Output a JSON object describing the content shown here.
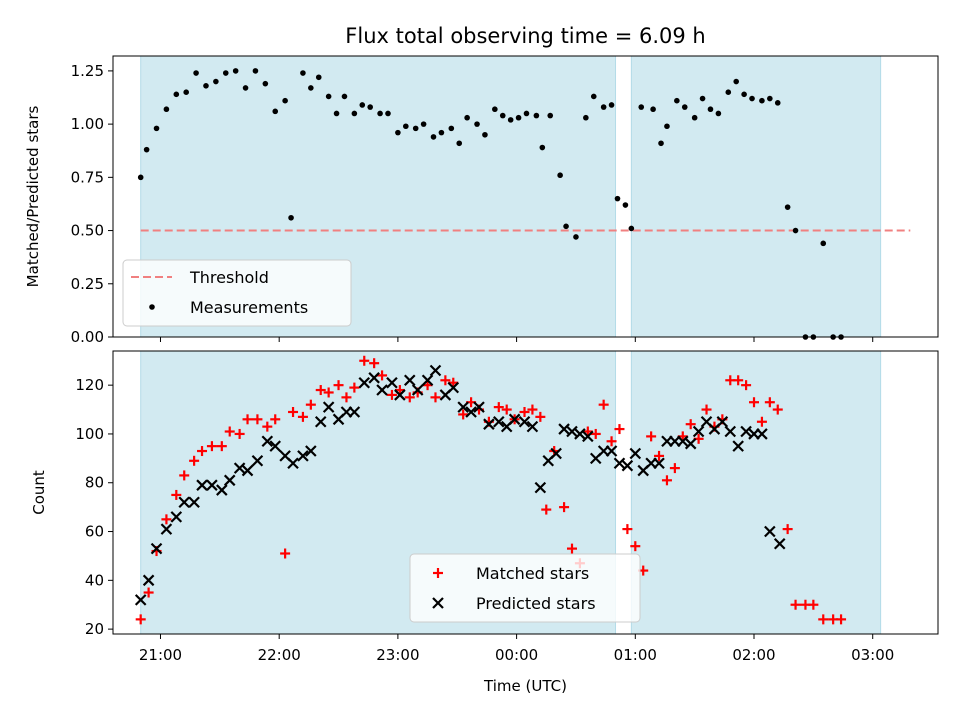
{
  "chart_data": [
    {
      "type": "scatter",
      "title": "Flux total observing time = 6.09 h",
      "ylabel": "Matched/Predicted stars",
      "xlabel": "",
      "ylim": [
        0,
        1.32
      ],
      "xlim": [
        "2024-01-01T20:36",
        "2024-01-02T03:33"
      ],
      "yticks": [
        "0.00",
        "0.25",
        "0.50",
        "0.75",
        "1.00",
        "1.25"
      ],
      "grid": false,
      "legend_position": "lower-left",
      "shaded_intervals": [
        {
          "start": "20:50",
          "end": "00:50",
          "color": "#add8e6"
        },
        {
          "start": "00:58",
          "end": "03:04",
          "color": "#add8e6"
        }
      ],
      "threshold": {
        "name": "Threshold",
        "value": 0.5,
        "x_start": "20:50",
        "x_end": "03:19",
        "color": "#f08080"
      },
      "series": [
        {
          "name": "Measurements",
          "color": "#000000",
          "marker": "dot",
          "points": [
            [
              "20:50",
              0.75
            ],
            [
              "20:53",
              0.88
            ],
            [
              "20:58",
              0.98
            ],
            [
              "21:03",
              1.07
            ],
            [
              "21:08",
              1.14
            ],
            [
              "21:13",
              1.15
            ],
            [
              "21:18",
              1.24
            ],
            [
              "21:23",
              1.18
            ],
            [
              "21:28",
              1.2
            ],
            [
              "21:33",
              1.24
            ],
            [
              "21:38",
              1.25
            ],
            [
              "21:43",
              1.17
            ],
            [
              "21:48",
              1.25
            ],
            [
              "21:53",
              1.19
            ],
            [
              "21:58",
              1.06
            ],
            [
              "22:03",
              1.11
            ],
            [
              "22:06",
              0.56
            ],
            [
              "22:12",
              1.24
            ],
            [
              "22:16",
              1.17
            ],
            [
              "22:20",
              1.22
            ],
            [
              "22:25",
              1.13
            ],
            [
              "22:29",
              1.05
            ],
            [
              "22:33",
              1.13
            ],
            [
              "22:38",
              1.05
            ],
            [
              "22:42",
              1.09
            ],
            [
              "22:46",
              1.08
            ],
            [
              "22:51",
              1.05
            ],
            [
              "22:55",
              1.05
            ],
            [
              "23:00",
              0.96
            ],
            [
              "23:04",
              0.99
            ],
            [
              "23:09",
              0.98
            ],
            [
              "23:13",
              1.0
            ],
            [
              "23:18",
              0.94
            ],
            [
              "23:22",
              0.96
            ],
            [
              "23:27",
              0.98
            ],
            [
              "23:31",
              0.91
            ],
            [
              "23:35",
              1.03
            ],
            [
              "23:40",
              1.0
            ],
            [
              "23:44",
              0.95
            ],
            [
              "23:49",
              1.07
            ],
            [
              "23:53",
              1.04
            ],
            [
              "23:57",
              1.02
            ],
            [
              "00:01",
              1.03
            ],
            [
              "00:05",
              1.05
            ],
            [
              "00:10",
              1.04
            ],
            [
              "00:13",
              0.89
            ],
            [
              "00:17",
              1.04
            ],
            [
              "00:22",
              0.76
            ],
            [
              "00:25",
              0.52
            ],
            [
              "00:30",
              0.47
            ],
            [
              "00:35",
              1.03
            ],
            [
              "00:39",
              1.13
            ],
            [
              "00:44",
              1.08
            ],
            [
              "00:48",
              1.09
            ],
            [
              "00:51",
              0.65
            ],
            [
              "00:55",
              0.62
            ],
            [
              "00:58",
              0.51
            ],
            [
              "01:03",
              1.08
            ],
            [
              "01:09",
              1.07
            ],
            [
              "01:13",
              0.91
            ],
            [
              "01:16",
              0.99
            ],
            [
              "01:21",
              1.11
            ],
            [
              "01:25",
              1.08
            ],
            [
              "01:30",
              1.03
            ],
            [
              "01:34",
              1.12
            ],
            [
              "01:38",
              1.07
            ],
            [
              "01:42",
              1.05
            ],
            [
              "01:47",
              1.15
            ],
            [
              "01:51",
              1.2
            ],
            [
              "01:55",
              1.14
            ],
            [
              "01:59",
              1.12
            ],
            [
              "02:04",
              1.11
            ],
            [
              "02:08",
              1.12
            ],
            [
              "02:12",
              1.1
            ],
            [
              "02:17",
              0.61
            ],
            [
              "02:21",
              0.5
            ],
            [
              "02:26",
              0.0
            ],
            [
              "02:30",
              0.0
            ],
            [
              "02:35",
              0.44
            ],
            [
              "02:40",
              0.0
            ],
            [
              "02:44",
              0.0
            ]
          ]
        }
      ]
    },
    {
      "type": "scatter",
      "title": "",
      "ylabel": "Count",
      "xlabel": "Time (UTC)",
      "ylim": [
        18,
        134
      ],
      "xlim": [
        "2024-01-01T20:36",
        "2024-01-02T03:33"
      ],
      "yticks": [
        "20",
        "40",
        "60",
        "80",
        "100",
        "120"
      ],
      "xticks": [
        "21:00",
        "22:00",
        "23:00",
        "00:00",
        "01:00",
        "02:00",
        "03:00"
      ],
      "grid": false,
      "legend_position": "lower-center",
      "series": [
        {
          "name": "Matched stars",
          "color": "#ff0000",
          "marker": "plus",
          "points": [
            [
              "20:50",
              24
            ],
            [
              "20:54",
              35
            ],
            [
              "20:58",
              52
            ],
            [
              "21:03",
              65
            ],
            [
              "21:08",
              75
            ],
            [
              "21:12",
              83
            ],
            [
              "21:17",
              89
            ],
            [
              "21:21",
              93
            ],
            [
              "21:26",
              95
            ],
            [
              "21:31",
              95
            ],
            [
              "21:35",
              101
            ],
            [
              "21:40",
              100
            ],
            [
              "21:44",
              106
            ],
            [
              "21:49",
              106
            ],
            [
              "21:54",
              103
            ],
            [
              "21:58",
              106
            ],
            [
              "22:03",
              51
            ],
            [
              "22:07",
              109
            ],
            [
              "22:12",
              107
            ],
            [
              "22:16",
              112
            ],
            [
              "22:21",
              118
            ],
            [
              "22:25",
              117
            ],
            [
              "22:30",
              120
            ],
            [
              "22:34",
              115
            ],
            [
              "22:38",
              119
            ],
            [
              "22:43",
              130
            ],
            [
              "22:48",
              129
            ],
            [
              "22:52",
              124
            ],
            [
              "22:57",
              116
            ],
            [
              "23:01",
              118
            ],
            [
              "23:06",
              115
            ],
            [
              "23:10",
              117
            ],
            [
              "23:15",
              120
            ],
            [
              "23:19",
              115
            ],
            [
              "23:24",
              122
            ],
            [
              "23:28",
              121
            ],
            [
              "23:33",
              108
            ],
            [
              "23:37",
              113
            ],
            [
              "23:41",
              110
            ],
            [
              "23:46",
              105
            ],
            [
              "23:51",
              111
            ],
            [
              "23:55",
              110
            ],
            [
              "23:59",
              106
            ],
            [
              "00:04",
              109
            ],
            [
              "00:08",
              110
            ],
            [
              "00:12",
              107
            ],
            [
              "00:15",
              69
            ],
            [
              "00:19",
              93
            ],
            [
              "00:24",
              70
            ],
            [
              "00:28",
              53
            ],
            [
              "00:32",
              47
            ],
            [
              "00:36",
              101
            ],
            [
              "00:40",
              100
            ],
            [
              "00:44",
              112
            ],
            [
              "00:48",
              97
            ],
            [
              "00:52",
              102
            ],
            [
              "00:56",
              61
            ],
            [
              "01:00",
              54
            ],
            [
              "01:04",
              44
            ],
            [
              "01:08",
              99
            ],
            [
              "01:12",
              91
            ],
            [
              "01:16",
              81
            ],
            [
              "01:20",
              86
            ],
            [
              "01:24",
              99
            ],
            [
              "01:28",
              104
            ],
            [
              "01:32",
              98
            ],
            [
              "01:36",
              110
            ],
            [
              "01:40",
              103
            ],
            [
              "01:44",
              106
            ],
            [
              "01:48",
              122
            ],
            [
              "01:52",
              122
            ],
            [
              "01:56",
              120
            ],
            [
              "02:00",
              113
            ],
            [
              "02:04",
              105
            ],
            [
              "02:08",
              113
            ],
            [
              "02:12",
              110
            ],
            [
              "02:17",
              61
            ],
            [
              "02:21",
              30
            ],
            [
              "02:26",
              30
            ],
            [
              "02:30",
              30
            ],
            [
              "02:35",
              24
            ],
            [
              "02:40",
              24
            ],
            [
              "02:44",
              24
            ]
          ]
        },
        {
          "name": "Predicted stars",
          "color": "#000000",
          "marker": "x",
          "points": [
            [
              "20:50",
              32
            ],
            [
              "20:54",
              40
            ],
            [
              "20:58",
              53
            ],
            [
              "21:03",
              61
            ],
            [
              "21:08",
              66
            ],
            [
              "21:12",
              72
            ],
            [
              "21:17",
              72
            ],
            [
              "21:21",
              79
            ],
            [
              "21:26",
              79
            ],
            [
              "21:31",
              77
            ],
            [
              "21:35",
              81
            ],
            [
              "21:40",
              86
            ],
            [
              "21:44",
              85
            ],
            [
              "21:49",
              89
            ],
            [
              "21:54",
              97
            ],
            [
              "21:58",
              95
            ],
            [
              "22:03",
              91
            ],
            [
              "22:07",
              88
            ],
            [
              "22:12",
              91
            ],
            [
              "22:16",
              93
            ],
            [
              "22:21",
              105
            ],
            [
              "22:25",
              111
            ],
            [
              "22:30",
              106
            ],
            [
              "22:34",
              109
            ],
            [
              "22:38",
              109
            ],
            [
              "22:43",
              121
            ],
            [
              "22:48",
              123
            ],
            [
              "22:52",
              118
            ],
            [
              "22:57",
              121
            ],
            [
              "23:01",
              116
            ],
            [
              "23:06",
              122
            ],
            [
              "23:10",
              118
            ],
            [
              "23:15",
              122
            ],
            [
              "23:19",
              126
            ],
            [
              "23:24",
              116
            ],
            [
              "23:28",
              119
            ],
            [
              "23:33",
              111
            ],
            [
              "23:37",
              109
            ],
            [
              "23:41",
              111
            ],
            [
              "23:46",
              104
            ],
            [
              "23:51",
              105
            ],
            [
              "23:55",
              103
            ],
            [
              "23:59",
              106
            ],
            [
              "00:04",
              105
            ],
            [
              "00:08",
              103
            ],
            [
              "00:12",
              78
            ],
            [
              "00:16",
              89
            ],
            [
              "00:20",
              92
            ],
            [
              "00:24",
              102
            ],
            [
              "00:28",
              101
            ],
            [
              "00:32",
              100
            ],
            [
              "00:36",
              99
            ],
            [
              "00:40",
              90
            ],
            [
              "00:44",
              93
            ],
            [
              "00:48",
              93
            ],
            [
              "00:52",
              88
            ],
            [
              "00:56",
              87
            ],
            [
              "01:00",
              92
            ],
            [
              "01:04",
              85
            ],
            [
              "01:08",
              88
            ],
            [
              "01:12",
              88
            ],
            [
              "01:16",
              97
            ],
            [
              "01:20",
              97
            ],
            [
              "01:24",
              97
            ],
            [
              "01:28",
              96
            ],
            [
              "01:32",
              101
            ],
            [
              "01:36",
              105
            ],
            [
              "01:40",
              102
            ],
            [
              "01:44",
              105
            ],
            [
              "01:48",
              101
            ],
            [
              "01:52",
              95
            ],
            [
              "01:56",
              101
            ],
            [
              "02:00",
              100
            ],
            [
              "02:04",
              100
            ],
            [
              "02:08",
              60
            ],
            [
              "02:13",
              55
            ]
          ]
        }
      ]
    }
  ]
}
